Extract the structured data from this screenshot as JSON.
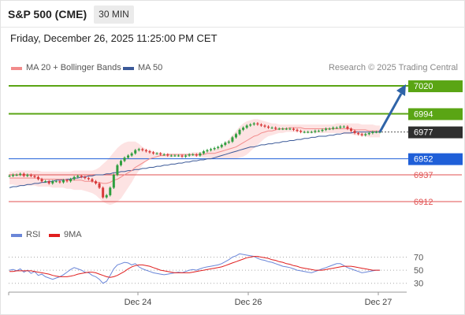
{
  "header": {
    "title": "S&P 500 (CME)",
    "timeframe": "30 MIN",
    "datetime": "Friday, December 26, 2025 11:25:00 PM CET"
  },
  "legend": {
    "ma20_label": "MA 20 + Bollinger Bands",
    "ma50_label": "MA 50",
    "credit": "Research © 2025 Trading Central",
    "ma20_color": "#f28b8b",
    "ma50_color": "#3b5998"
  },
  "rsi_legend": {
    "rsi_label": "RSI",
    "ma_label": "9MA",
    "rsi_color": "#6a86d8",
    "ma_color": "#e01e1e"
  },
  "chart_data": [
    {
      "type": "line",
      "x_ticks": [
        "Dec 24",
        "Dec 26",
        "Dec 27"
      ],
      "ylim": [
        6890,
        7034
      ],
      "current_price": 6977,
      "levels": [
        {
          "label": "7020",
          "value": 7020,
          "kind": "resistance",
          "color": "#5aa514"
        },
        {
          "label": "6994",
          "value": 6994,
          "kind": "resistance",
          "color": "#5aa514"
        },
        {
          "label": "6977",
          "value": 6977,
          "kind": "last",
          "color": "#333333"
        },
        {
          "label": "6952",
          "value": 6952,
          "kind": "pivot",
          "color": "#1f5fd8"
        },
        {
          "label": "6937",
          "value": 6937,
          "kind": "support",
          "color": "#e05050"
        },
        {
          "label": "6912",
          "value": 6912,
          "kind": "support",
          "color": "#e05050"
        }
      ],
      "close": [
        6936,
        6937,
        6937,
        6938,
        6936,
        6937,
        6936,
        6935,
        6933,
        6931,
        6931,
        6929,
        6931,
        6931,
        6930,
        6932,
        6931,
        6933,
        6935,
        6936,
        6935,
        6934,
        6933,
        6931,
        6929,
        6925,
        6916,
        6918,
        6925,
        6937,
        6946,
        6950,
        6953,
        6955,
        6957,
        6960,
        6961,
        6960,
        6959,
        6958,
        6957,
        6957,
        6956,
        6956,
        6955,
        6955,
        6955,
        6955,
        6954,
        6955,
        6956,
        6956,
        6955,
        6957,
        6959,
        6960,
        6961,
        6962,
        6963,
        6965,
        6967,
        6968,
        6972,
        6975,
        6979,
        6981,
        6983,
        6984,
        6985,
        6984,
        6983,
        6982,
        6981,
        6981,
        6980,
        6980,
        6980,
        6980,
        6980,
        6979,
        6978,
        6977,
        6977,
        6977,
        6977,
        6978,
        6978,
        6979,
        6980,
        6980,
        6981,
        6981,
        6982,
        6982,
        6980,
        6978,
        6976,
        6975,
        6974,
        6975,
        6976,
        6977,
        6977,
        6977
      ],
      "ma20": [
        6934,
        6934,
        6934,
        6934,
        6934,
        6934,
        6934,
        6934,
        6934,
        6933,
        6933,
        6933,
        6933,
        6933,
        6933,
        6933,
        6932,
        6932,
        6932,
        6932,
        6932,
        6931,
        6931,
        6931,
        6930,
        6930,
        6929,
        6929,
        6930,
        6932,
        6933,
        6935,
        6937,
        6939,
        6941,
        6944,
        6946,
        6948,
        6950,
        6952,
        6953,
        6954,
        6955,
        6955,
        6956,
        6956,
        6956,
        6956,
        6956,
        6956,
        6956,
        6956,
        6956,
        6956,
        6956,
        6957,
        6957,
        6957,
        6958,
        6959,
        6960,
        6961,
        6962,
        6963,
        6965,
        6967,
        6969,
        6971,
        6973,
        6974,
        6976,
        6977,
        6978,
        6978,
        6979,
        6980,
        6980,
        6980,
        6981,
        6981,
        6981,
        6981,
        6980,
        6980,
        6980,
        6980,
        6980,
        6980,
        6980,
        6980,
        6980,
        6980,
        6980,
        6980,
        6980,
        6980,
        6979,
        6979,
        6979,
        6979,
        6978,
        6978,
        6978,
        6978
      ],
      "ma50": [
        6925,
        6926,
        6926,
        6927,
        6927,
        6928,
        6928,
        6929,
        6929,
        6930,
        6930,
        6931,
        6931,
        6932,
        6932,
        6932,
        6933,
        6933,
        6934,
        6934,
        6935,
        6935,
        6936,
        6936,
        6937,
        6937,
        6937,
        6938,
        6938,
        6939,
        6939,
        6940,
        6940,
        6941,
        6941,
        6942,
        6942,
        6943,
        6943,
        6944,
        6944,
        6945,
        6945,
        6946,
        6946,
        6947,
        6947,
        6948,
        6948,
        6949,
        6949,
        6950,
        6950,
        6951,
        6951,
        6952,
        6952,
        6953,
        6954,
        6955,
        6956,
        6957,
        6958,
        6959,
        6960,
        6961,
        6962,
        6963,
        6963,
        6964,
        6965,
        6965,
        6966,
        6966,
        6967,
        6967,
        6968,
        6968,
        6969,
        6969,
        6970,
        6970,
        6971,
        6971,
        6972,
        6972,
        6973,
        6973,
        6973,
        6974,
        6974,
        6975,
        6975,
        6976,
        6976,
        6976,
        6977,
        6977,
        6977,
        6977,
        6977,
        6977,
        6977,
        6977
      ],
      "bb_upper": [
        6940,
        6940,
        6941,
        6941,
        6941,
        6941,
        6941,
        6941,
        6941,
        6940,
        6940,
        6940,
        6940,
        6940,
        6940,
        6940,
        6940,
        6940,
        6941,
        6941,
        6941,
        6941,
        6941,
        6941,
        6942,
        6944,
        6947,
        6950,
        6954,
        6958,
        6962,
        6965,
        6967,
        6968,
        6968,
        6968,
        6966,
        6963,
        6961,
        6960,
        6959,
        6958,
        6958,
        6957,
        6957,
        6957,
        6957,
        6957,
        6957,
        6957,
        6957,
        6958,
        6958,
        6958,
        6959,
        6959,
        6960,
        6961,
        6962,
        6964,
        6967,
        6970,
        6974,
        6978,
        6982,
        6985,
        6987,
        6988,
        6989,
        6989,
        6988,
        6987,
        6986,
        6985,
        6985,
        6984,
        6984,
        6984,
        6984,
        6984,
        6984,
        6984,
        6984,
        6984,
        6984,
        6984,
        6984,
        6984,
        6984,
        6984,
        6984,
        6985,
        6985,
        6985,
        6985,
        6985,
        6985,
        6985,
        6984,
        6984,
        6984,
        6984,
        6983,
        6983
      ],
      "bb_lower": [
        6928,
        6928,
        6927,
        6927,
        6927,
        6927,
        6927,
        6927,
        6926,
        6926,
        6926,
        6926,
        6925,
        6925,
        6925,
        6925,
        6924,
        6924,
        6923,
        6923,
        6923,
        6922,
        6921,
        6920,
        6918,
        6915,
        6912,
        6910,
        6909,
        6910,
        6912,
        6915,
        6920,
        6925,
        6930,
        6936,
        6941,
        6946,
        6950,
        6952,
        6953,
        6953,
        6953,
        6953,
        6953,
        6953,
        6954,
        6954,
        6954,
        6954,
        6954,
        6954,
        6954,
        6954,
        6953,
        6953,
        6952,
        6952,
        6952,
        6952,
        6952,
        6952,
        6952,
        6952,
        6953,
        6954,
        6956,
        6959,
        6962,
        6965,
        6968,
        6971,
        6973,
        6974,
        6975,
        6976,
        6976,
        6977,
        6977,
        6977,
        6977,
        6977,
        6976,
        6976,
        6976,
        6976,
        6976,
        6976,
        6976,
        6976,
        6976,
        6976,
        6976,
        6975,
        6975,
        6975,
        6974,
        6974,
        6973,
        6973,
        6972,
        6972,
        6972,
        6972
      ],
      "projection": {
        "from": 6977,
        "to": 7020
      }
    },
    {
      "type": "line",
      "ylim": [
        20,
        85
      ],
      "y_ticks": [
        30,
        50,
        70
      ],
      "rsi": [
        50,
        51,
        49,
        52,
        47,
        50,
        45,
        48,
        42,
        44,
        40,
        38,
        36,
        38,
        40,
        43,
        47,
        51,
        54,
        52,
        50,
        47,
        46,
        42,
        40,
        36,
        30,
        33,
        42,
        52,
        58,
        60,
        62,
        61,
        58,
        60,
        55,
        52,
        50,
        48,
        46,
        45,
        44,
        43,
        44,
        45,
        46,
        47,
        46,
        48,
        50,
        51,
        50,
        52,
        54,
        55,
        56,
        57,
        58,
        60,
        63,
        66,
        70,
        72,
        75,
        74,
        73,
        72,
        71,
        68,
        66,
        65,
        63,
        62,
        60,
        58,
        56,
        55,
        54,
        52,
        50,
        49,
        48,
        47,
        46,
        48,
        50,
        52,
        54,
        56,
        58,
        60,
        60,
        57,
        54,
        52,
        50,
        48,
        46,
        47,
        48,
        49,
        50,
        50
      ],
      "rsi_ma": [
        48,
        48,
        49,
        49,
        49,
        49,
        49,
        48,
        47,
        46,
        45,
        44,
        42,
        41,
        40,
        40,
        40,
        41,
        42,
        44,
        45,
        46,
        47,
        47,
        46,
        44,
        42,
        40,
        39,
        40,
        42,
        45,
        48,
        52,
        55,
        57,
        58,
        58,
        57,
        56,
        54,
        52,
        50,
        49,
        48,
        47,
        46,
        46,
        46,
        46,
        46,
        47,
        48,
        49,
        50,
        51,
        52,
        53,
        54,
        55,
        57,
        59,
        61,
        63,
        65,
        67,
        69,
        70,
        71,
        71,
        70,
        69,
        68,
        66,
        65,
        63,
        62,
        60,
        59,
        57,
        56,
        54,
        53,
        52,
        51,
        50,
        50,
        50,
        51,
        52,
        53,
        54,
        55,
        56,
        56,
        56,
        55,
        54,
        53,
        52,
        51,
        50,
        50,
        50
      ]
    }
  ]
}
